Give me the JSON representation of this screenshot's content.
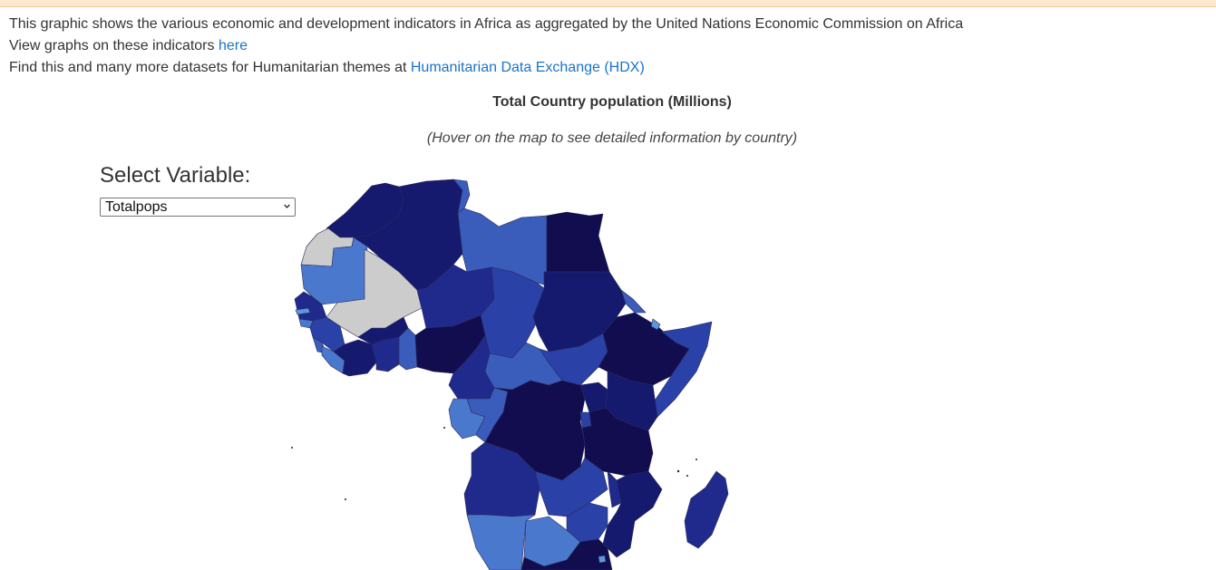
{
  "intro": {
    "line1": "This graphic shows the various economic and development indicators in Africa as aggregated by the United Nations Economic Commission on Africa",
    "line2_prefix": "View graphs on these indicators ",
    "line2_link": "here",
    "line3_prefix": "Find this and many more datasets for Humanitarian themes at ",
    "line3_link": "Humanitarian Data Exchange (HDX)"
  },
  "map": {
    "title": "Total Country population (Millions)",
    "subtitle": "(Hover on the map to see detailed information by country)"
  },
  "controls": {
    "select_label": "Select Variable:",
    "selected_value": "Totalpops",
    "chevron_icon": "chevron-down-icon"
  },
  "colors": {
    "top_strip": "#fce8cf",
    "link": "#1a73c9",
    "no_data": "#cccccc",
    "scale_darkest": "#120d4f",
    "scale_dark": "#151a6e",
    "scale_mid_dark": "#1f2a8c",
    "scale_mid": "#2a41a8",
    "scale_mid_light": "#3a5cbb",
    "scale_light": "#4a78cc",
    "scale_lightest": "#5f95dd"
  }
}
